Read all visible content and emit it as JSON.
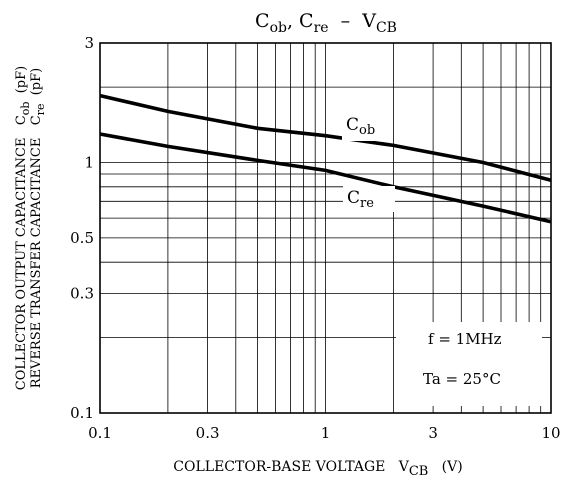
{
  "chart_data": {
    "type": "line",
    "title": "Cₒᵦ, Cᵣₑ – Vᴄᴮ",
    "title_parts": [
      "C",
      "ob",
      ", C",
      "re",
      "  –  V",
      "CB"
    ],
    "xlabel_parts": [
      "COLLECTOR-BASE VOLTAGE   V",
      "CB",
      "   (V)"
    ],
    "ylabel_line1_parts": [
      "COLLECTOR OUTPUT CAPACITANCE   C",
      "ob",
      "  (pF)"
    ],
    "ylabel_line2_parts": [
      "REVERSE TRANSFER CAPACITANCE   C",
      "re",
      "  (pF)"
    ],
    "x_scale": "log",
    "y_scale": "log",
    "xlim": [
      0.1,
      10
    ],
    "ylim": [
      0.1,
      3
    ],
    "x_ticks": [
      {
        "value": 0.1,
        "label": "0.1"
      },
      {
        "value": 0.3,
        "label": "0.3"
      },
      {
        "value": 1,
        "label": "1"
      },
      {
        "value": 3,
        "label": "3"
      },
      {
        "value": 10,
        "label": "10"
      }
    ],
    "y_ticks": [
      {
        "value": 0.1,
        "label": "0.1"
      },
      {
        "value": 0.3,
        "label": "0.3"
      },
      {
        "value": 0.5,
        "label": "0.5"
      },
      {
        "value": 1,
        "label": "1"
      },
      {
        "value": 3,
        "label": "3"
      }
    ],
    "series": [
      {
        "name": "Cob",
        "label_parts": [
          "C",
          "ob"
        ],
        "x": [
          0.1,
          0.2,
          0.5,
          1,
          2,
          5,
          10
        ],
        "values": [
          1.85,
          1.6,
          1.37,
          1.28,
          1.17,
          1.0,
          0.85
        ]
      },
      {
        "name": "Cre",
        "label_parts": [
          "C",
          "re"
        ],
        "x": [
          0.1,
          0.2,
          0.5,
          1,
          2,
          5,
          10
        ],
        "values": [
          1.3,
          1.16,
          1.02,
          0.93,
          0.8,
          0.67,
          0.58
        ]
      }
    ],
    "annotations": [
      "f = 1MHz",
      "Ta = 25°C"
    ],
    "grid": true,
    "legend": "none"
  }
}
